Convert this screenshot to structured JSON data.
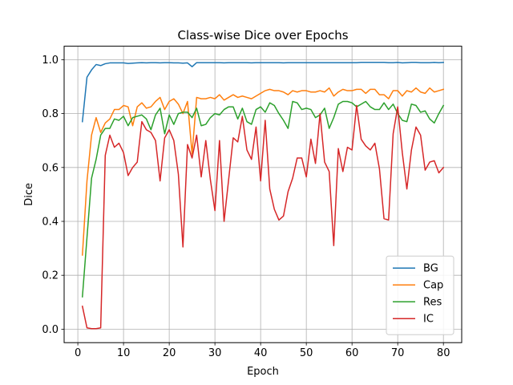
{
  "chart_data": {
    "type": "line",
    "title": "Class-wise Dice over Epochs",
    "xlabel": "Epoch",
    "ylabel": "Dice",
    "xlim": [
      -3,
      84
    ],
    "ylim": [
      -0.05,
      1.05
    ],
    "xticks": [
      0,
      10,
      20,
      30,
      40,
      50,
      60,
      70,
      80
    ],
    "yticks": [
      0.0,
      0.2,
      0.4,
      0.6,
      0.8,
      1.0
    ],
    "ytick_labels": [
      "0.0",
      "0.2",
      "0.4",
      "0.6",
      "0.8",
      "1.0"
    ],
    "grid": true,
    "legend_position": "lower-right",
    "x": [
      1,
      2,
      3,
      4,
      5,
      6,
      7,
      8,
      9,
      10,
      11,
      12,
      13,
      14,
      15,
      16,
      17,
      18,
      19,
      20,
      21,
      22,
      23,
      24,
      25,
      26,
      27,
      28,
      29,
      30,
      31,
      32,
      33,
      34,
      35,
      36,
      37,
      38,
      39,
      40,
      41,
      42,
      43,
      44,
      45,
      46,
      47,
      48,
      49,
      50,
      51,
      52,
      53,
      54,
      55,
      56,
      57,
      58,
      59,
      60,
      61,
      62,
      63,
      64,
      65,
      66,
      67,
      68,
      69,
      70,
      71,
      72,
      73,
      74,
      75,
      76,
      77,
      78,
      79,
      80
    ],
    "series": [
      {
        "name": "BG",
        "color": "#1f77b4",
        "values": [
          0.77,
          0.935,
          0.962,
          0.982,
          0.978,
          0.985,
          0.988,
          0.988,
          0.988,
          0.988,
          0.986,
          0.987,
          0.988,
          0.989,
          0.988,
          0.989,
          0.989,
          0.988,
          0.989,
          0.989,
          0.988,
          0.988,
          0.987,
          0.988,
          0.974,
          0.989,
          0.989,
          0.989,
          0.989,
          0.989,
          0.989,
          0.988,
          0.989,
          0.989,
          0.989,
          0.989,
          0.989,
          0.988,
          0.989,
          0.989,
          0.989,
          0.989,
          0.989,
          0.989,
          0.988,
          0.989,
          0.989,
          0.989,
          0.989,
          0.989,
          0.989,
          0.989,
          0.989,
          0.989,
          0.989,
          0.989,
          0.989,
          0.989,
          0.989,
          0.989,
          0.989,
          0.99,
          0.99,
          0.99,
          0.99,
          0.99,
          0.99,
          0.989,
          0.989,
          0.99,
          0.988,
          0.989,
          0.99,
          0.99,
          0.989,
          0.989,
          0.989,
          0.99,
          0.989,
          0.99
        ]
      },
      {
        "name": "Cap",
        "color": "#ff7f0e",
        "values": [
          0.275,
          0.55,
          0.72,
          0.785,
          0.73,
          0.765,
          0.78,
          0.815,
          0.815,
          0.83,
          0.825,
          0.755,
          0.825,
          0.84,
          0.82,
          0.825,
          0.845,
          0.86,
          0.815,
          0.845,
          0.855,
          0.835,
          0.8,
          0.845,
          0.65,
          0.86,
          0.855,
          0.855,
          0.86,
          0.855,
          0.87,
          0.85,
          0.86,
          0.87,
          0.86,
          0.865,
          0.86,
          0.855,
          0.865,
          0.875,
          0.885,
          0.89,
          0.885,
          0.885,
          0.88,
          0.87,
          0.885,
          0.88,
          0.885,
          0.885,
          0.88,
          0.88,
          0.885,
          0.88,
          0.895,
          0.865,
          0.88,
          0.89,
          0.885,
          0.885,
          0.89,
          0.89,
          0.875,
          0.89,
          0.89,
          0.87,
          0.87,
          0.855,
          0.885,
          0.885,
          0.865,
          0.885,
          0.88,
          0.895,
          0.88,
          0.875,
          0.895,
          0.88,
          0.885,
          0.89
        ]
      },
      {
        "name": "Res",
        "color": "#2ca02c",
        "values": [
          0.12,
          0.34,
          0.56,
          0.63,
          0.72,
          0.745,
          0.745,
          0.78,
          0.775,
          0.79,
          0.755,
          0.785,
          0.79,
          0.795,
          0.78,
          0.74,
          0.795,
          0.82,
          0.725,
          0.795,
          0.76,
          0.8,
          0.805,
          0.805,
          0.785,
          0.82,
          0.755,
          0.76,
          0.785,
          0.8,
          0.795,
          0.815,
          0.825,
          0.825,
          0.78,
          0.82,
          0.77,
          0.76,
          0.815,
          0.825,
          0.805,
          0.84,
          0.83,
          0.8,
          0.775,
          0.745,
          0.845,
          0.84,
          0.815,
          0.82,
          0.815,
          0.785,
          0.795,
          0.82,
          0.745,
          0.785,
          0.835,
          0.845,
          0.845,
          0.84,
          0.825,
          0.835,
          0.845,
          0.825,
          0.815,
          0.815,
          0.84,
          0.815,
          0.835,
          0.8,
          0.775,
          0.77,
          0.835,
          0.83,
          0.805,
          0.81,
          0.78,
          0.765,
          0.8,
          0.83
        ]
      },
      {
        "name": "IC",
        "color": "#d62728",
        "values": [
          0.085,
          0.005,
          0.002,
          0.002,
          0.005,
          0.645,
          0.72,
          0.675,
          0.69,
          0.655,
          0.57,
          0.6,
          0.62,
          0.77,
          0.74,
          0.73,
          0.7,
          0.55,
          0.71,
          0.74,
          0.7,
          0.575,
          0.305,
          0.685,
          0.635,
          0.72,
          0.565,
          0.7,
          0.555,
          0.44,
          0.7,
          0.4,
          0.555,
          0.71,
          0.695,
          0.79,
          0.665,
          0.63,
          0.75,
          0.55,
          0.775,
          0.52,
          0.445,
          0.405,
          0.42,
          0.51,
          0.56,
          0.635,
          0.635,
          0.565,
          0.705,
          0.615,
          0.8,
          0.62,
          0.585,
          0.31,
          0.67,
          0.585,
          0.675,
          0.665,
          0.83,
          0.705,
          0.68,
          0.665,
          0.69,
          0.595,
          0.41,
          0.405,
          0.725,
          0.825,
          0.655,
          0.52,
          0.665,
          0.75,
          0.72,
          0.59,
          0.62,
          0.625,
          0.58,
          0.6
        ]
      }
    ]
  }
}
